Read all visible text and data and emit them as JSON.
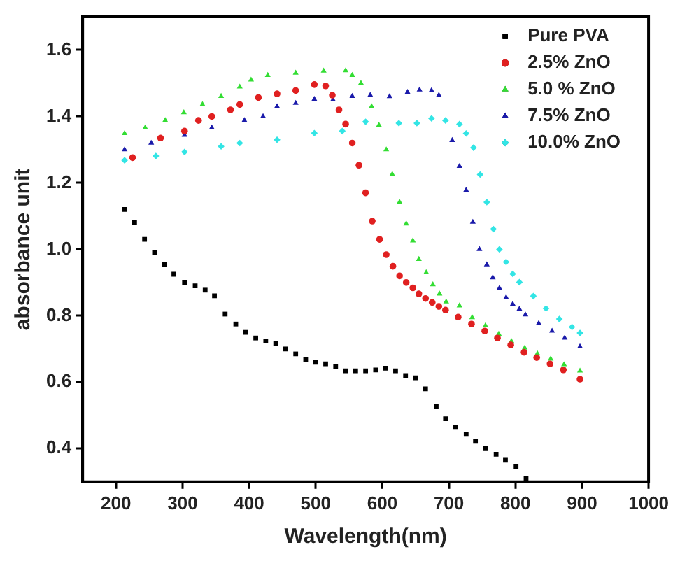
{
  "chart_data": {
    "type": "scatter",
    "xlabel": "Wavelength(nm)",
    "ylabel": "absorbance unit",
    "xlim": [
      150,
      1000
    ],
    "xticks": [
      200,
      300,
      400,
      500,
      600,
      700,
      800,
      900,
      1000
    ],
    "ylim": [
      0.3,
      1.7
    ],
    "yticks": [
      0.4,
      0.6,
      0.8,
      {
        "value": 1,
        "label": "1.0"
      },
      1.2,
      1.4,
      1.6
    ],
    "grid": false,
    "legend": "top right",
    "series": [
      {
        "name": "Pure PVA",
        "color": "#000000",
        "marker": "square",
        "x": [
          213,
          228,
          243,
          258,
          273,
          287,
          303,
          319,
          334,
          348,
          364,
          380,
          395,
          410,
          425,
          440,
          455,
          470,
          485,
          500,
          515,
          530,
          545,
          560,
          575,
          590,
          605,
          620,
          635,
          650,
          665,
          681,
          695,
          710,
          726,
          740,
          755,
          771,
          785,
          801,
          816
        ],
        "values": [
          1.12,
          1.08,
          1.03,
          0.99,
          0.955,
          0.925,
          0.9,
          0.89,
          0.877,
          0.86,
          0.805,
          0.775,
          0.75,
          0.733,
          0.724,
          0.716,
          0.7,
          0.685,
          0.668,
          0.66,
          0.655,
          0.647,
          0.634,
          0.634,
          0.634,
          0.637,
          0.642,
          0.634,
          0.62,
          0.613,
          0.58,
          0.526,
          0.49,
          0.464,
          0.443,
          0.422,
          0.4,
          0.383,
          0.365,
          0.345,
          0.31
        ]
      },
      {
        "name": "2.5% ZnO",
        "color": "#e02020",
        "marker": "circle",
        "x": [
          225,
          267,
          303,
          324,
          344,
          372,
          386,
          414,
          442,
          470,
          498,
          515,
          525,
          535,
          545,
          555,
          565,
          575,
          585,
          596,
          606,
          616,
          626,
          636,
          646,
          655,
          665,
          675,
          685,
          695,
          714,
          734,
          754,
          773,
          793,
          813,
          832,
          852,
          872,
          897
        ],
        "values": [
          1.276,
          1.335,
          1.356,
          1.388,
          1.4,
          1.42,
          1.436,
          1.457,
          1.468,
          1.478,
          1.496,
          1.492,
          1.464,
          1.42,
          1.377,
          1.32,
          1.253,
          1.17,
          1.085,
          1.03,
          0.984,
          0.949,
          0.92,
          0.9,
          0.884,
          0.866,
          0.852,
          0.84,
          0.828,
          0.817,
          0.796,
          0.775,
          0.754,
          0.733,
          0.712,
          0.69,
          0.674,
          0.655,
          0.637,
          0.609
        ]
      },
      {
        "name": "5.0 % ZnO",
        "color": "#33dd33",
        "marker": "triangle",
        "x": [
          213,
          244,
          274,
          302,
          330,
          358,
          386,
          403,
          428,
          470,
          512,
          545,
          555,
          568,
          584,
          595,
          606,
          615,
          626,
          636,
          646,
          655,
          666,
          676,
          686,
          696,
          716,
          735,
          755,
          775,
          794,
          814,
          833,
          853,
          873,
          897
        ],
        "values": [
          1.349,
          1.366,
          1.388,
          1.412,
          1.436,
          1.461,
          1.489,
          1.51,
          1.524,
          1.531,
          1.537,
          1.538,
          1.524,
          1.5,
          1.43,
          1.374,
          1.3,
          1.226,
          1.142,
          1.077,
          1.026,
          0.97,
          0.93,
          0.894,
          0.866,
          0.842,
          0.83,
          0.795,
          0.77,
          0.745,
          0.723,
          0.703,
          0.686,
          0.67,
          0.653,
          0.634
        ]
      },
      {
        "name": "7.5% ZnO",
        "color": "#1a1aaa",
        "marker": "triangle",
        "x": [
          213,
          253,
          303,
          344,
          393,
          421,
          442,
          470,
          498,
          526,
          555,
          582,
          611,
          638,
          656,
          674,
          685,
          705,
          716,
          726,
          736,
          746,
          757,
          766,
          776,
          786,
          796,
          806,
          815,
          835,
          855,
          874,
          897
        ],
        "values": [
          1.3,
          1.32,
          1.344,
          1.366,
          1.388,
          1.4,
          1.43,
          1.44,
          1.452,
          1.45,
          1.461,
          1.464,
          1.46,
          1.473,
          1.48,
          1.478,
          1.464,
          1.328,
          1.25,
          1.178,
          1.082,
          1.0,
          0.954,
          0.915,
          0.883,
          0.855,
          0.835,
          0.82,
          0.803,
          0.777,
          0.754,
          0.733,
          0.707
        ]
      },
      {
        "name": "10.0% ZnO",
        "color": "#33e5e5",
        "marker": "diamond",
        "x": [
          213,
          260,
          303,
          358,
          386,
          442,
          498,
          540,
          575,
          595,
          625,
          652,
          674,
          695,
          716,
          726,
          737,
          747,
          757,
          767,
          776,
          786,
          796,
          806,
          827,
          846,
          866,
          885,
          897
        ],
        "values": [
          1.268,
          1.281,
          1.293,
          1.31,
          1.32,
          1.33,
          1.35,
          1.356,
          1.384,
          null,
          1.38,
          1.38,
          1.394,
          1.388,
          1.377,
          1.349,
          1.306,
          1.225,
          1.142,
          1.061,
          1.0,
          0.962,
          0.926,
          0.901,
          0.859,
          0.822,
          0.79,
          0.766,
          0.748
        ]
      }
    ]
  }
}
